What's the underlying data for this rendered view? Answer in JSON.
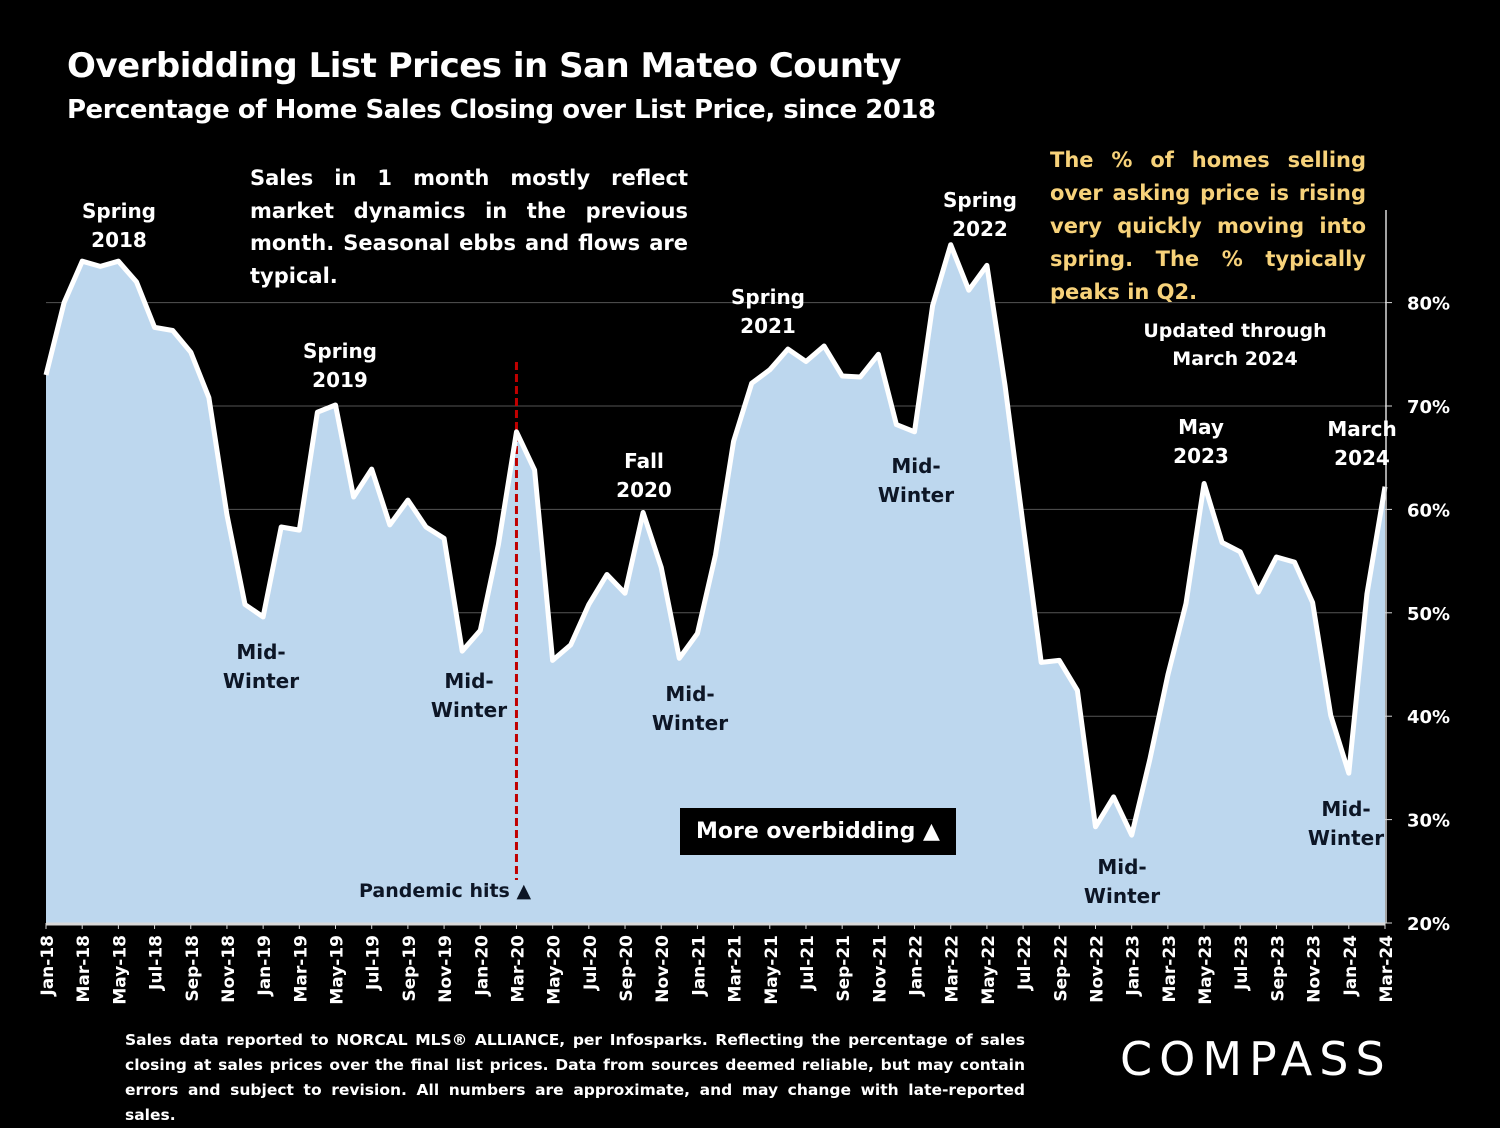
{
  "header": {
    "title": "Overbidding List Prices in San Mateo County",
    "subtitle": "Percentage of Home Sales Closing over List Price, since 2018"
  },
  "notes": {
    "market_dynamics": "Sales in 1 month mostly reflect market dynamics in the previous month. Seasonal ebbs and flows are typical.",
    "trend": "The % of homes selling over asking price is rising very quickly moving into spring. The % typically peaks in Q2.",
    "updated": "Updated through\nMarch 2024",
    "more_overbidding": "More overbidding ▲",
    "pandemic": "Pandemic hits ▲"
  },
  "annotations": [
    {
      "text": "Spring\n2018",
      "month": "Mar-18",
      "tone": "light",
      "pos": "above"
    },
    {
      "text": "Spring\n2019",
      "month": "May-19",
      "tone": "light",
      "pos": "above"
    },
    {
      "text": "Mid-\nWinter",
      "month": "Jan-19",
      "tone": "dark",
      "pos": "below"
    },
    {
      "text": "Mid-\nWinter",
      "month": "Dec-19",
      "tone": "dark",
      "pos": "below"
    },
    {
      "text": "Fall\n2020",
      "month": "Oct-20",
      "tone": "light",
      "pos": "above"
    },
    {
      "text": "Mid-\nWinter",
      "month": "Jan-21",
      "tone": "dark",
      "pos": "below"
    },
    {
      "text": "Spring\n2021",
      "month": "May-21",
      "tone": "light",
      "pos": "above"
    },
    {
      "text": "Mid-\nWinter",
      "month": "Jan-22",
      "tone": "dark",
      "pos": "below"
    },
    {
      "text": "Spring\n2022",
      "month": "Apr-22",
      "tone": "light",
      "pos": "above"
    },
    {
      "text": "Mid-\nWinter",
      "month": "Jan-23",
      "tone": "dark",
      "pos": "below"
    },
    {
      "text": "May\n2023",
      "month": "May-23",
      "tone": "light",
      "pos": "above"
    },
    {
      "text": "Mid-\nWinter",
      "month": "Jan-24",
      "tone": "dark",
      "pos": "below"
    },
    {
      "text": "March\n2024",
      "month": "Mar-24",
      "tone": "light",
      "pos": "above"
    }
  ],
  "footer": {
    "source": "Sales data reported to NORCAL MLS® ALLIANCE, per Infosparks. Reflecting the percentage of sales closing at sales prices over the final list prices. Data from sources deemed reliable, but may contain errors and subject to revision. All numbers are approximate, and may change with late-reported sales.",
    "logo": "COMPASS"
  },
  "colors": {
    "background": "#000000",
    "area_fill": "#bdd7ee",
    "line": "#ffffff",
    "gold_text": "#f7d27a",
    "pandemic_line": "#c00000",
    "dark_label": "#0d1626"
  },
  "chart_data": {
    "type": "area",
    "title": "Overbidding List Prices in San Mateo County",
    "subtitle": "Percentage of Home Sales Closing over List Price, since 2018",
    "xlabel": "",
    "ylabel": "",
    "ylim": [
      20,
      86
    ],
    "yticks": [
      20,
      30,
      40,
      50,
      60,
      70,
      80
    ],
    "ytick_labels": [
      "20%",
      "30%",
      "40%",
      "50%",
      "60%",
      "70%",
      "80%"
    ],
    "y_axis_side": "right",
    "grid": true,
    "x_tick_labels": [
      "Jan-18",
      "Mar-18",
      "May-18",
      "Jul-18",
      "Sep-18",
      "Nov-18",
      "Jan-19",
      "Mar-19",
      "May-19",
      "Jul-19",
      "Sep-19",
      "Nov-19",
      "Jan-20",
      "Mar-20",
      "May-20",
      "Jul-20",
      "Sep-20",
      "Nov-20",
      "Jan-21",
      "Mar-21",
      "May-21",
      "Jul-21",
      "Sep-21",
      "Nov-21",
      "Jan-22",
      "Mar-22",
      "May-22",
      "Jul-22",
      "Sep-22",
      "Nov-22",
      "Jan-23",
      "Mar-23",
      "May-23",
      "Jul-23",
      "Sep-23",
      "Nov-23",
      "Jan-24",
      "Mar-24"
    ],
    "x": [
      "Jan-18",
      "Feb-18",
      "Mar-18",
      "Apr-18",
      "May-18",
      "Jun-18",
      "Jul-18",
      "Aug-18",
      "Sep-18",
      "Oct-18",
      "Nov-18",
      "Dec-18",
      "Jan-19",
      "Feb-19",
      "Mar-19",
      "Apr-19",
      "May-19",
      "Jun-19",
      "Jul-19",
      "Aug-19",
      "Sep-19",
      "Oct-19",
      "Nov-19",
      "Dec-19",
      "Jan-20",
      "Feb-20",
      "Mar-20",
      "Apr-20",
      "May-20",
      "Jun-20",
      "Jul-20",
      "Aug-20",
      "Sep-20",
      "Oct-20",
      "Nov-20",
      "Dec-20",
      "Jan-21",
      "Feb-21",
      "Mar-21",
      "Apr-21",
      "May-21",
      "Jun-21",
      "Jul-21",
      "Aug-21",
      "Sep-21",
      "Oct-21",
      "Nov-21",
      "Dec-21",
      "Jan-22",
      "Feb-22",
      "Mar-22",
      "Apr-22",
      "May-22",
      "Jun-22",
      "Jul-22",
      "Aug-22",
      "Sep-22",
      "Oct-22",
      "Nov-22",
      "Dec-22",
      "Jan-23",
      "Feb-23",
      "Mar-23",
      "Apr-23",
      "May-23",
      "Jun-23",
      "Jul-23",
      "Aug-23",
      "Sep-23",
      "Oct-23",
      "Nov-23",
      "Dec-23",
      "Jan-24",
      "Feb-24",
      "Mar-24"
    ],
    "series": [
      {
        "name": "% of sales over list price",
        "values": [
          73.0,
          80.0,
          84.0,
          83.5,
          84.0,
          82.0,
          77.6,
          77.3,
          75.2,
          70.8,
          59.5,
          50.8,
          49.6,
          58.3,
          58.0,
          69.4,
          70.1,
          61.2,
          63.9,
          58.5,
          60.9,
          58.3,
          57.2,
          46.3,
          48.3,
          56.6,
          67.5,
          63.8,
          45.4,
          46.9,
          50.8,
          53.7,
          51.9,
          59.7,
          54.4,
          45.6,
          48.0,
          55.6,
          66.6,
          72.2,
          73.5,
          75.5,
          74.3,
          75.8,
          72.9,
          72.8,
          75.0,
          68.2,
          67.5,
          79.7,
          85.6,
          81.2,
          83.6,
          72.0,
          58.5,
          45.2,
          45.4,
          42.5,
          29.3,
          32.2,
          28.5,
          35.8,
          44.0,
          50.9,
          62.5,
          56.8,
          55.9,
          52.0,
          55.4,
          54.9,
          51.0,
          40.1,
          34.5,
          51.8,
          62.2
        ]
      }
    ],
    "event_markers": [
      {
        "month": "Mar-20",
        "label": "Pandemic hits ▲",
        "style": "dashed-red-vertical"
      }
    ]
  }
}
